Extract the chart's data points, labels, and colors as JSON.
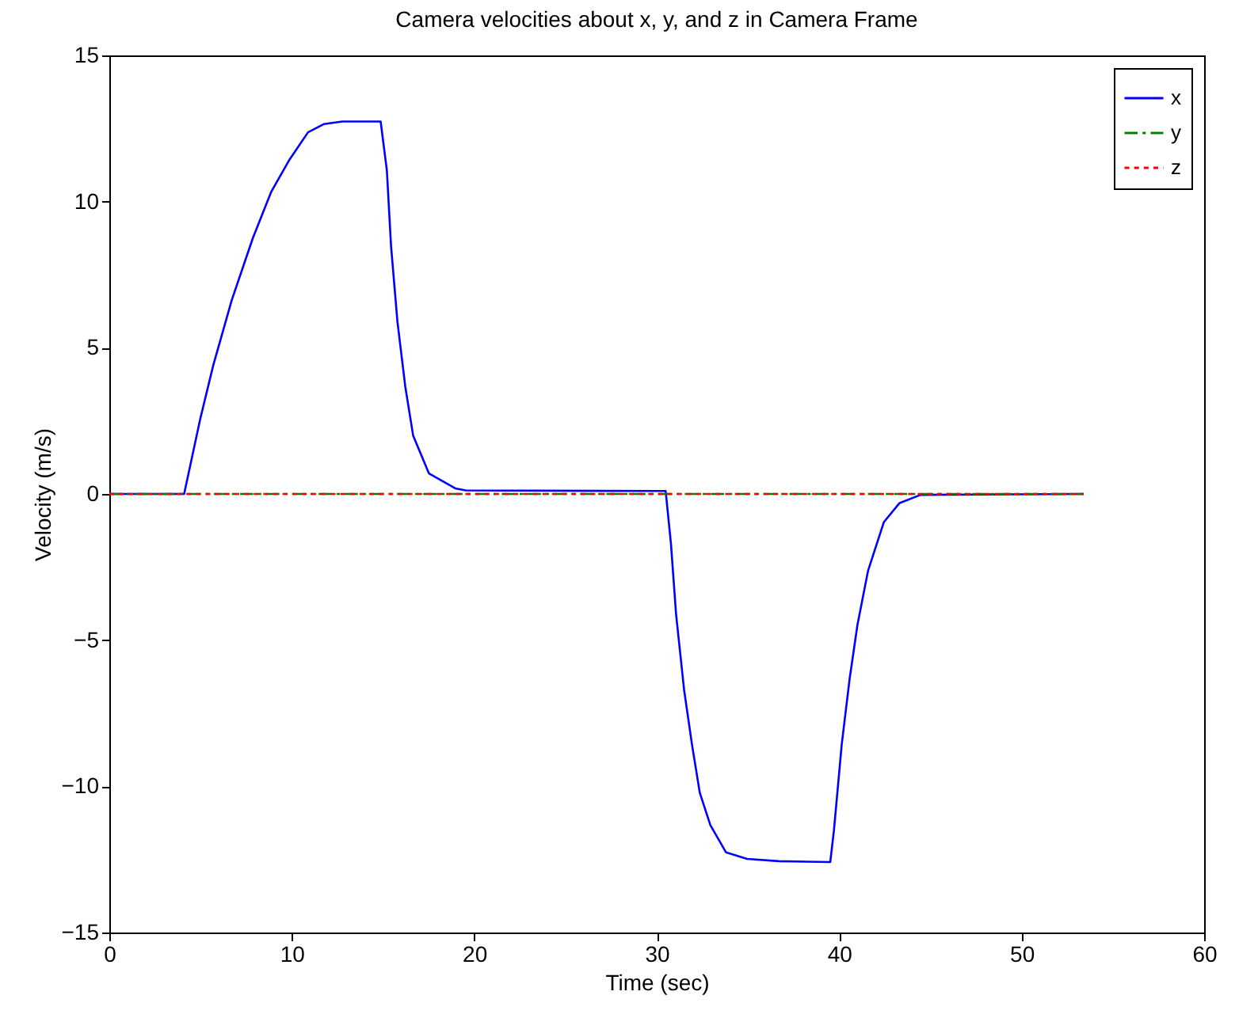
{
  "chart_data": {
    "type": "line",
    "title": "Camera velocities about  x, y, and z in Camera Frame",
    "xlabel": "Time (sec)",
    "ylabel": "Velocity (m/s)",
    "xlim": [
      0,
      60
    ],
    "xticks": [
      0,
      10,
      20,
      30,
      40,
      50,
      60
    ],
    "ylim": [
      -15,
      15
    ],
    "yticks": [
      -15,
      -10,
      -5,
      0,
      5,
      10,
      15
    ],
    "grid": false,
    "legend": "top right",
    "marker": "none",
    "series": [
      {
        "name": "x",
        "color": "#0000ff",
        "line_style": "solid",
        "x": [
          0,
          4.1,
          4.98,
          5.7,
          6.71,
          7.87,
          8.87,
          9.88,
          10.89,
          11.75,
          12.77,
          14.87,
          15.21,
          15.44,
          15.79,
          16.22,
          16.65,
          17.52,
          18.96,
          19.54,
          30.4,
          30.49,
          30.78,
          31.06,
          31.5,
          31.93,
          32.36,
          32.94,
          33.8,
          34.95,
          36.68,
          39.51,
          39.71,
          40.14,
          40.57,
          41.0,
          41.58,
          42.45,
          43.31,
          44.46,
          53.4
        ],
        "values": [
          0,
          0,
          2.56,
          4.41,
          6.63,
          8.76,
          10.33,
          11.44,
          12.37,
          12.65,
          12.74,
          12.74,
          11.07,
          8.48,
          5.89,
          3.67,
          2.0,
          0.7,
          0.19,
          0.12,
          0.1,
          0.1,
          -1.7,
          -4.11,
          -6.7,
          -8.56,
          -10.22,
          -11.33,
          -12.26,
          -12.48,
          -12.56,
          -12.59,
          -11.52,
          -8.56,
          -6.33,
          -4.48,
          -2.63,
          -0.96,
          -0.31,
          -0.03,
          0
        ]
      },
      {
        "name": "y",
        "color": "#008000",
        "line_style": "dashdot",
        "x": [
          0,
          53.4
        ],
        "values": [
          0,
          0
        ]
      },
      {
        "name": "z",
        "color": "#ff0000",
        "line_style": "dotted",
        "x": [
          0,
          53.4
        ],
        "values": [
          0,
          0
        ]
      }
    ]
  }
}
